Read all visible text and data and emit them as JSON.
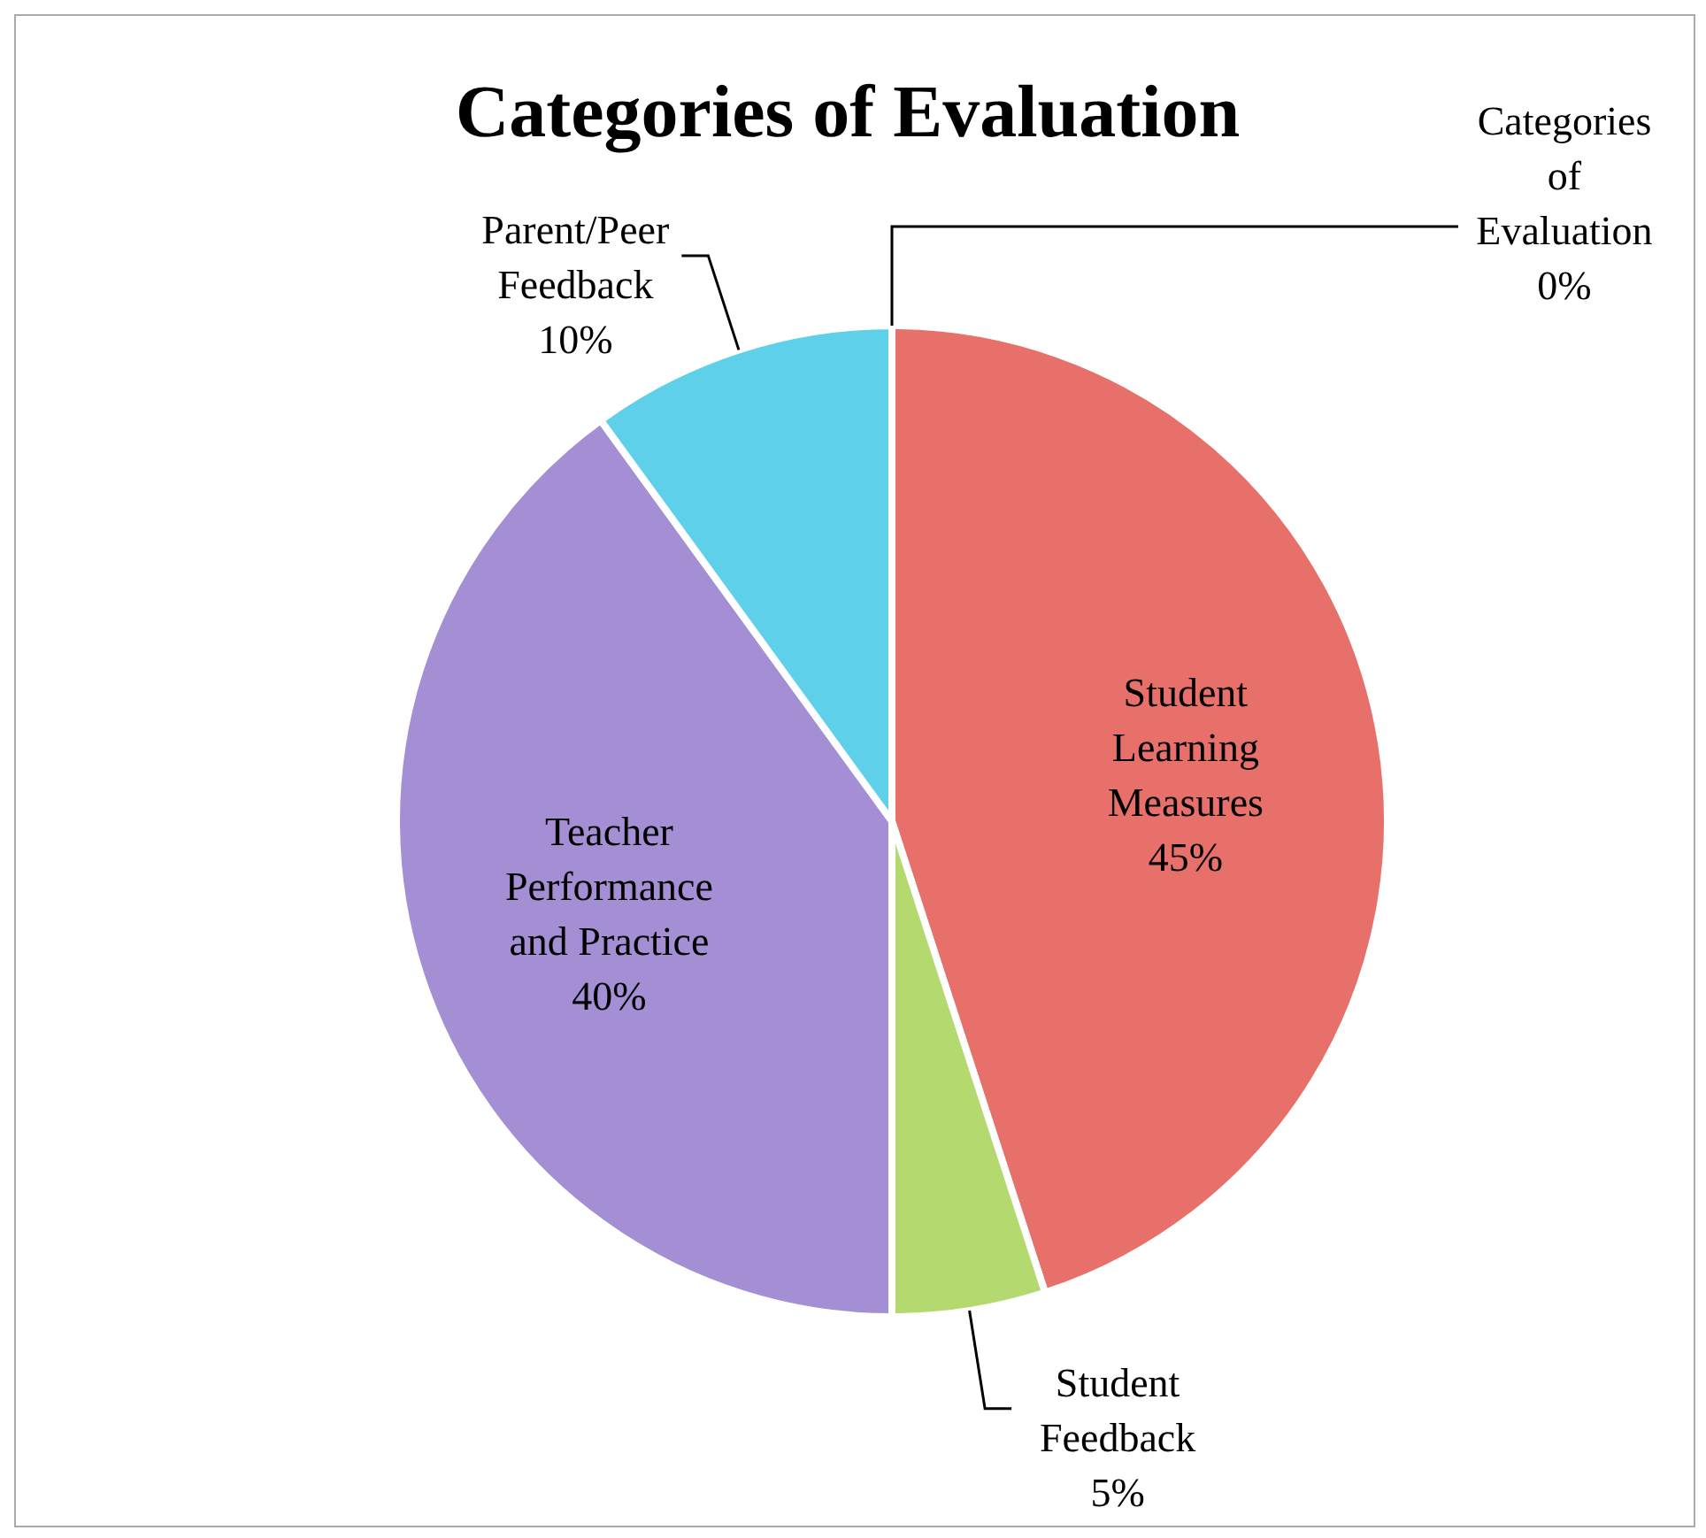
{
  "chart_data": {
    "type": "pie",
    "title": "Categories of Evaluation",
    "categories": [
      "Categories of Evaluation",
      "Student Learning Measures",
      "Student Feedback",
      "Teacher Performance and Practice",
      "Parent/Peer Feedback"
    ],
    "values": [
      0,
      45,
      5,
      40,
      10
    ],
    "value_labels": [
      "0%",
      "45%",
      "5%",
      "40%",
      "10%"
    ],
    "colors": [
      "#4f81bd",
      "#e8706a",
      "#b4d96e",
      "#a48fd4",
      "#5fd0ea"
    ],
    "legend": false
  }
}
